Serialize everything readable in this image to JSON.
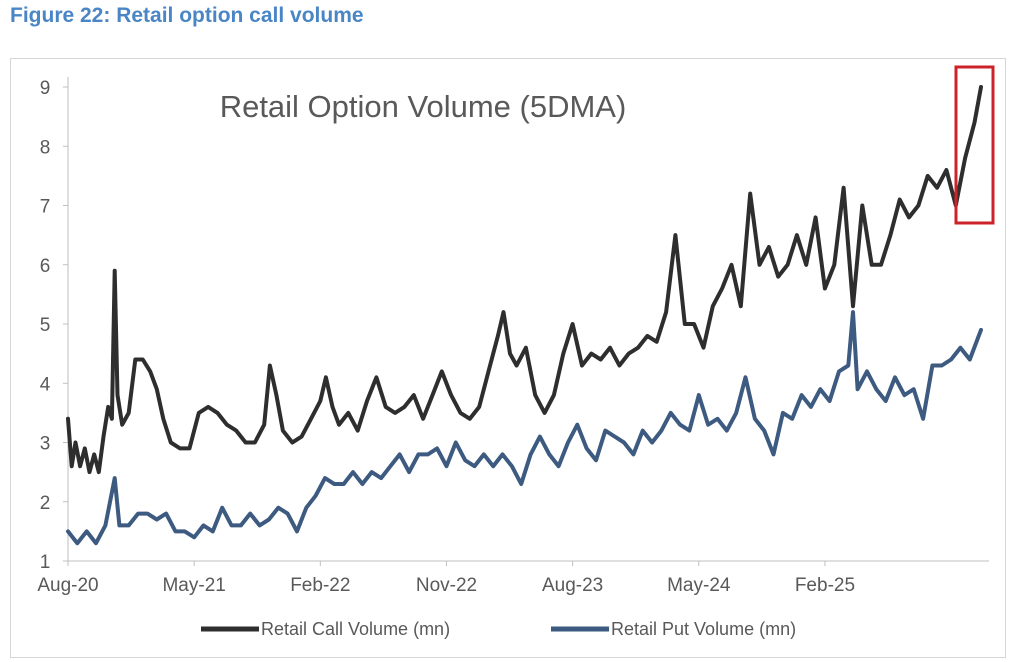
{
  "figure_title": "Figure 22: Retail option call volume",
  "colors": {
    "call": "#2e2e2e",
    "put": "#3d5a80",
    "highlight": "#cc2229",
    "axis": "#bfbfbf",
    "text": "#595959",
    "figure_title": "#4a86c5"
  },
  "chart_data": {
    "type": "line",
    "title": "Retail Option Volume (5DMA)",
    "xlabel": "",
    "ylabel": "",
    "x_tick_labels": [
      "Aug-20",
      "May-21",
      "Feb-22",
      "Nov-22",
      "Aug-23",
      "May-24",
      "Feb-25"
    ],
    "ylim": [
      1,
      9
    ],
    "y_ticks": [
      1,
      2,
      3,
      4,
      5,
      6,
      7,
      8,
      9
    ],
    "grid": false,
    "legend_position": "bottom",
    "x_unit": "months since Aug-20",
    "series": [
      {
        "name": "Retail Call Volume (mn)",
        "color": "#2e2e2e",
        "points": [
          [
            0,
            3.4
          ],
          [
            0.4,
            2.6
          ],
          [
            0.8,
            3.0
          ],
          [
            1.3,
            2.6
          ],
          [
            1.8,
            2.9
          ],
          [
            2.3,
            2.5
          ],
          [
            2.8,
            2.8
          ],
          [
            3.3,
            2.5
          ],
          [
            3.8,
            3.1
          ],
          [
            4.3,
            3.6
          ],
          [
            4.7,
            3.4
          ],
          [
            5.0,
            5.9
          ],
          [
            5.3,
            3.8
          ],
          [
            5.8,
            3.3
          ],
          [
            6.5,
            3.5
          ],
          [
            7.2,
            4.4
          ],
          [
            8.0,
            4.4
          ],
          [
            8.8,
            4.2
          ],
          [
            9.5,
            3.9
          ],
          [
            10.2,
            3.4
          ],
          [
            11.0,
            3.0
          ],
          [
            12.0,
            2.9
          ],
          [
            13.0,
            2.9
          ],
          [
            14.0,
            3.5
          ],
          [
            15.0,
            3.6
          ],
          [
            16.0,
            3.5
          ],
          [
            17.0,
            3.3
          ],
          [
            18.0,
            3.2
          ],
          [
            19.0,
            3.0
          ],
          [
            20.0,
            3.0
          ],
          [
            21.0,
            3.3
          ],
          [
            21.6,
            4.3
          ],
          [
            22.3,
            3.8
          ],
          [
            23.0,
            3.2
          ],
          [
            24.0,
            3.0
          ],
          [
            25.0,
            3.1
          ],
          [
            26.0,
            3.4
          ],
          [
            27.0,
            3.7
          ],
          [
            27.6,
            4.1
          ],
          [
            28.3,
            3.6
          ],
          [
            29.0,
            3.3
          ],
          [
            30.0,
            3.5
          ],
          [
            31.0,
            3.2
          ],
          [
            32.0,
            3.7
          ],
          [
            33.0,
            4.1
          ],
          [
            34.0,
            3.6
          ],
          [
            35.0,
            3.5
          ],
          [
            36.0,
            3.6
          ],
          [
            37.0,
            3.8
          ],
          [
            38.0,
            3.4
          ],
          [
            39.0,
            3.8
          ],
          [
            40.0,
            4.2
          ],
          [
            41.0,
            3.8
          ],
          [
            42.0,
            3.5
          ],
          [
            43.0,
            3.4
          ],
          [
            44.0,
            3.6
          ],
          [
            45.0,
            4.2
          ],
          [
            46.0,
            4.8
          ],
          [
            46.6,
            5.2
          ],
          [
            47.3,
            4.5
          ],
          [
            48.0,
            4.3
          ],
          [
            49.0,
            4.6
          ],
          [
            50.0,
            3.8
          ],
          [
            51.0,
            3.5
          ],
          [
            52.0,
            3.8
          ],
          [
            53.0,
            4.5
          ],
          [
            54.0,
            5.0
          ],
          [
            55.0,
            4.3
          ],
          [
            56.0,
            4.5
          ],
          [
            57.0,
            4.4
          ],
          [
            58.0,
            4.6
          ],
          [
            59.0,
            4.3
          ],
          [
            60.0,
            4.5
          ],
          [
            61.0,
            4.6
          ],
          [
            62.0,
            4.8
          ],
          [
            63.0,
            4.7
          ],
          [
            64.0,
            5.2
          ],
          [
            65.0,
            6.5
          ],
          [
            66.0,
            5.0
          ],
          [
            67.0,
            5.0
          ],
          [
            68.0,
            4.6
          ],
          [
            69.0,
            5.3
          ],
          [
            70.0,
            5.6
          ],
          [
            71.0,
            6.0
          ],
          [
            72.0,
            5.3
          ],
          [
            73.0,
            7.2
          ],
          [
            74.0,
            6.0
          ],
          [
            75.0,
            6.3
          ],
          [
            76.0,
            5.8
          ],
          [
            77.0,
            6.0
          ],
          [
            78.0,
            6.5
          ],
          [
            79.0,
            6.0
          ],
          [
            80.0,
            6.8
          ],
          [
            81.0,
            5.6
          ],
          [
            82.0,
            6.0
          ],
          [
            83.0,
            7.3
          ],
          [
            84.0,
            5.3
          ],
          [
            85.0,
            7.0
          ],
          [
            86.0,
            6.0
          ],
          [
            87.0,
            6.0
          ],
          [
            88.0,
            6.5
          ],
          [
            89.0,
            7.1
          ],
          [
            90.0,
            6.8
          ],
          [
            91.0,
            7.0
          ],
          [
            92.0,
            7.5
          ],
          [
            93.0,
            7.3
          ],
          [
            94.0,
            7.6
          ],
          [
            95.0,
            7.0
          ],
          [
            96.0,
            7.8
          ],
          [
            97.0,
            8.4
          ],
          [
            97.7,
            9.0
          ]
        ]
      },
      {
        "name": "Retail Put Volume (mn)",
        "color": "#3d5a80",
        "points": [
          [
            0,
            1.5
          ],
          [
            1.0,
            1.3
          ],
          [
            2.0,
            1.5
          ],
          [
            3.0,
            1.3
          ],
          [
            4.0,
            1.6
          ],
          [
            5.0,
            2.4
          ],
          [
            5.5,
            1.6
          ],
          [
            6.5,
            1.6
          ],
          [
            7.5,
            1.8
          ],
          [
            8.5,
            1.8
          ],
          [
            9.5,
            1.7
          ],
          [
            10.5,
            1.8
          ],
          [
            11.5,
            1.5
          ],
          [
            12.5,
            1.5
          ],
          [
            13.5,
            1.4
          ],
          [
            14.5,
            1.6
          ],
          [
            15.5,
            1.5
          ],
          [
            16.5,
            1.9
          ],
          [
            17.5,
            1.6
          ],
          [
            18.5,
            1.6
          ],
          [
            19.5,
            1.8
          ],
          [
            20.5,
            1.6
          ],
          [
            21.5,
            1.7
          ],
          [
            22.5,
            1.9
          ],
          [
            23.5,
            1.8
          ],
          [
            24.5,
            1.5
          ],
          [
            25.5,
            1.9
          ],
          [
            26.5,
            2.1
          ],
          [
            27.5,
            2.4
          ],
          [
            28.5,
            2.3
          ],
          [
            29.5,
            2.3
          ],
          [
            30.5,
            2.5
          ],
          [
            31.5,
            2.3
          ],
          [
            32.5,
            2.5
          ],
          [
            33.5,
            2.4
          ],
          [
            34.5,
            2.6
          ],
          [
            35.5,
            2.8
          ],
          [
            36.5,
            2.5
          ],
          [
            37.5,
            2.8
          ],
          [
            38.5,
            2.8
          ],
          [
            39.5,
            2.9
          ],
          [
            40.5,
            2.6
          ],
          [
            41.5,
            3.0
          ],
          [
            42.5,
            2.7
          ],
          [
            43.5,
            2.6
          ],
          [
            44.5,
            2.8
          ],
          [
            45.5,
            2.6
          ],
          [
            46.5,
            2.8
          ],
          [
            47.5,
            2.6
          ],
          [
            48.5,
            2.3
          ],
          [
            49.5,
            2.8
          ],
          [
            50.5,
            3.1
          ],
          [
            51.5,
            2.8
          ],
          [
            52.5,
            2.6
          ],
          [
            53.5,
            3.0
          ],
          [
            54.5,
            3.3
          ],
          [
            55.5,
            2.9
          ],
          [
            56.5,
            2.7
          ],
          [
            57.5,
            3.2
          ],
          [
            58.5,
            3.1
          ],
          [
            59.5,
            3.0
          ],
          [
            60.5,
            2.8
          ],
          [
            61.5,
            3.2
          ],
          [
            62.5,
            3.0
          ],
          [
            63.5,
            3.2
          ],
          [
            64.5,
            3.5
          ],
          [
            65.5,
            3.3
          ],
          [
            66.5,
            3.2
          ],
          [
            67.5,
            3.8
          ],
          [
            68.5,
            3.3
          ],
          [
            69.5,
            3.4
          ],
          [
            70.5,
            3.2
          ],
          [
            71.5,
            3.5
          ],
          [
            72.5,
            4.1
          ],
          [
            73.5,
            3.4
          ],
          [
            74.5,
            3.2
          ],
          [
            75.5,
            2.8
          ],
          [
            76.5,
            3.5
          ],
          [
            77.5,
            3.4
          ],
          [
            78.5,
            3.8
          ],
          [
            79.5,
            3.6
          ],
          [
            80.5,
            3.9
          ],
          [
            81.5,
            3.7
          ],
          [
            82.5,
            4.2
          ],
          [
            83.5,
            4.3
          ],
          [
            84.0,
            5.2
          ],
          [
            84.5,
            3.9
          ],
          [
            85.5,
            4.2
          ],
          [
            86.5,
            3.9
          ],
          [
            87.5,
            3.7
          ],
          [
            88.5,
            4.1
          ],
          [
            89.5,
            3.8
          ],
          [
            90.5,
            3.9
          ],
          [
            91.5,
            3.4
          ],
          [
            92.5,
            4.3
          ],
          [
            93.5,
            4.3
          ],
          [
            94.5,
            4.4
          ],
          [
            95.5,
            4.6
          ],
          [
            96.5,
            4.4
          ],
          [
            97.7,
            4.9
          ]
        ]
      }
    ]
  }
}
